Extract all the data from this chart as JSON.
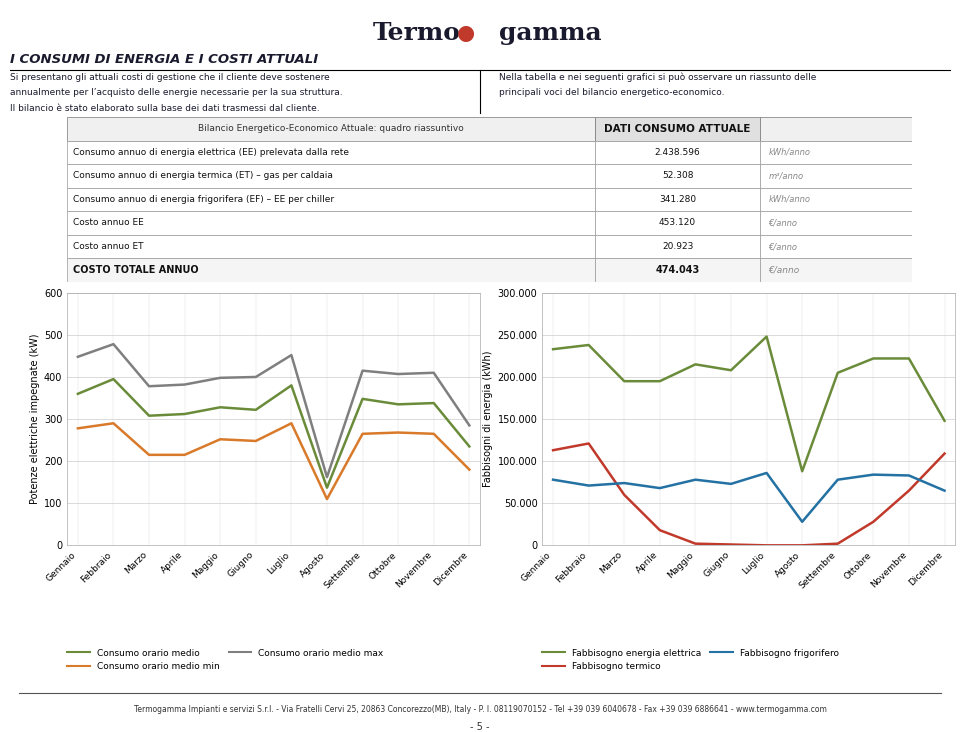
{
  "months": [
    "Gennaio",
    "Febbraio",
    "Marzo",
    "Aprile",
    "Maggio",
    "Giugno",
    "Luglio",
    "Agosto",
    "Settembre",
    "Ottobre",
    "Novembre",
    "Dicembre"
  ],
  "chart1": {
    "medio": [
      360,
      395,
      308,
      312,
      328,
      322,
      380,
      137,
      348,
      335,
      338,
      235
    ],
    "min": [
      278,
      290,
      215,
      215,
      252,
      248,
      290,
      110,
      265,
      268,
      265,
      180
    ],
    "max": [
      448,
      478,
      378,
      382,
      398,
      400,
      452,
      162,
      415,
      407,
      410,
      285
    ],
    "ylabel": "Potenze elettriche impegnate (kW)",
    "ylim": [
      0,
      600
    ],
    "yticks": [
      0,
      100,
      200,
      300,
      400,
      500,
      600
    ],
    "color_medio": "#6a8c3a",
    "color_min": "#d97a2a",
    "color_max": "#7f7f7f",
    "legend_medio": "Consumo orario medio",
    "legend_min": "Consumo orario medio min",
    "legend_max": "Consumo orario medio max"
  },
  "chart2": {
    "elettrica": [
      233000,
      238000,
      195000,
      195000,
      215000,
      208000,
      248000,
      88000,
      205000,
      222000,
      222000,
      148000
    ],
    "termico": [
      113000,
      121000,
      60000,
      18000,
      2000,
      1000,
      0,
      0,
      2000,
      28000,
      65000,
      109000
    ],
    "frigorifero": [
      78000,
      71000,
      74000,
      68000,
      78000,
      73000,
      86000,
      28000,
      78000,
      84000,
      83000,
      65000
    ],
    "ylabel": "Fabbisogni di energia (kWh)",
    "ylim": [
      0,
      300000
    ],
    "yticks": [
      0,
      50000,
      100000,
      150000,
      200000,
      250000,
      300000
    ],
    "color_elettrica": "#6a8c3a",
    "color_termico": "#c0392b",
    "color_frigorifero": "#2471a3",
    "legend_elettrica": "Fabbisogno energia elettrica",
    "legend_termico": "Fabbisogno termico",
    "legend_frigorifero": "Fabbisogno frigorifero"
  },
  "table": {
    "title_left": "Bilancio Energetico-Economico Attuale: quadro riassuntivo",
    "title_right": "DATI CONSUMO ATTUALE",
    "rows": [
      [
        "Consumo annuo di energia elettrica (EE) prelevata dalla rete",
        "2.438.596",
        "kWh/anno"
      ],
      [
        "Consumo annuo di energia termica (ET) – gas per caldaia",
        "52.308",
        "m³/anno"
      ],
      [
        "Consumo annuo di energia frigorifera (EF) – EE per chiller",
        "341.280",
        "kWh/anno"
      ],
      [
        "Costo annuo EE",
        "453.120",
        "€/anno"
      ],
      [
        "Costo annuo ET",
        "20.923",
        "€/anno"
      ],
      [
        "COSTO TOTALE ANNUO",
        "474.043",
        "€/anno"
      ]
    ]
  },
  "header": {
    "title": "I CONSUMI DI ENERGIA E I COSTI ATTUALI",
    "left_text1": "Si presentano gli attuali costi di gestione che il cliente deve sostenere",
    "left_text2": "annualmente per l’acquisto delle energie necessarie per la sua struttura.",
    "left_text3": "Il bilancio è stato elaborato sulla base dei dati trasmessi dal cliente.",
    "right_text1": "Nella tabella e nei seguenti grafici si può osservare un riassunto delle",
    "right_text2": "principali voci del bilancio energetico-economico."
  },
  "footer": "Termogamma Impianti e servizi S.r.l. - Via Fratelli Cervi 25, 20863 Concorezzo(MB), Italy - P. I. 08119070152 - Tel +39 039 6040678 - Fax +39 039 6886641 - www.termogamma.com",
  "page_number": "- 5 -",
  "bg_color": "#ffffff"
}
